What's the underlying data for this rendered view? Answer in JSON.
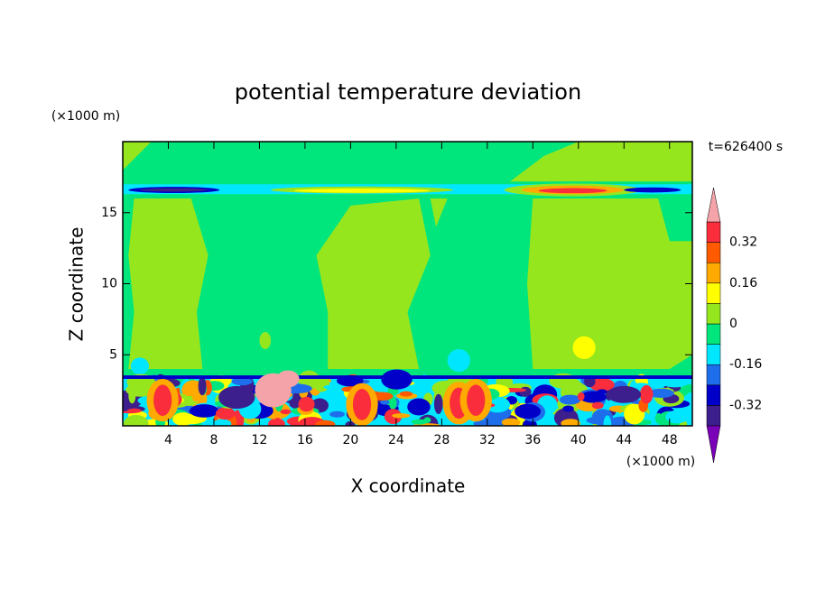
{
  "chart_data": {
    "type": "contour",
    "title": "potential temperature deviation",
    "x_label": "X coordinate",
    "y_label": "Z coordinate",
    "x_unit": "(×1000 m)",
    "y_unit": "(×1000 m)",
    "time_label": "t=626400 s",
    "xlim": [
      0,
      50
    ],
    "ylim": [
      0,
      20
    ],
    "xticks": [
      4,
      8,
      12,
      16,
      20,
      24,
      28,
      32,
      36,
      40,
      44,
      48
    ],
    "yticks": [
      5,
      10,
      15
    ],
    "levels": [
      -0.4,
      -0.32,
      -0.24,
      -0.16,
      -0.08,
      0,
      0.08,
      0.16,
      0.24,
      0.32,
      0.4
    ],
    "colors": [
      "#7a00b8",
      "#3c1e8c",
      "#0000c8",
      "#1e6eeb",
      "#00e6ff",
      "#00e67c",
      "#96e61e",
      "#ffff00",
      "#ffaa00",
      "#ff5a00",
      "#fa2d3c",
      "#f4a3a8"
    ],
    "colorbar_ticks": [
      -0.32,
      -0.16,
      0,
      0.16,
      0.32
    ]
  }
}
